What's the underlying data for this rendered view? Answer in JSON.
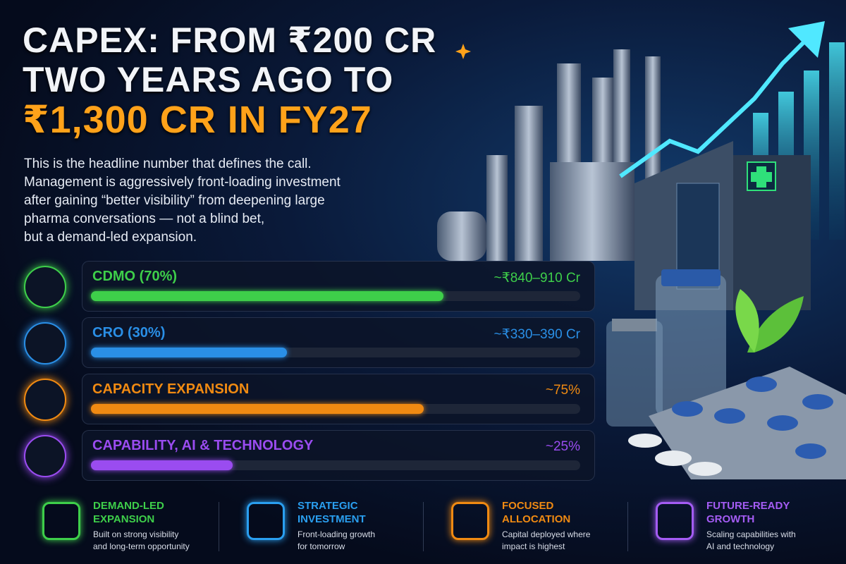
{
  "header": {
    "title_lines": [
      "CAPEX: FROM ₹200 CR",
      "TWO YEARS AGO TO",
      "₹1,300 CR IN FY27"
    ],
    "intro_lines": [
      "This is the headline number that defines the call.",
      "Management is aggressively front-loading investment",
      "after gaining “better visibility” from deepening large",
      "pharma conversations — not a blind bet,",
      "but a demand-led expansion."
    ]
  },
  "allocation": [
    {
      "label": "CDMO (70%)",
      "amount": "~₹840–910 Cr",
      "bar_fill": 72,
      "color": "#3ecf4a"
    },
    {
      "label": "CRO (30%)",
      "amount": "~₹330–390 Cr",
      "bar_fill": 40,
      "color": "#2a8fe6"
    },
    {
      "label": "CAPACITY EXPANSION",
      "amount": "~75%",
      "bar_fill": 68,
      "color": "#f08a12"
    },
    {
      "label": "CAPABILITY, AI & TECHNOLOGY",
      "amount": "~25%",
      "bar_fill": 29,
      "color": "#9a4cf0"
    }
  ],
  "features": [
    {
      "title_lines": [
        "DEMAND-LED",
        "EXPANSION"
      ],
      "text_lines": [
        "Built on strong visibility",
        "and long-term opportunity"
      ],
      "color": "#3ecf4a"
    },
    {
      "title_lines": [
        "STRATEGIC",
        "INVESTMENT"
      ],
      "text_lines": [
        "Front-loading growth",
        "for tomorrow"
      ],
      "color": "#2a9ff0"
    },
    {
      "title_lines": [
        "FOCUSED",
        "ALLOCATION"
      ],
      "text_lines": [
        "Capital deployed where",
        "impact is highest"
      ],
      "color": "#f08a12"
    },
    {
      "title_lines": [
        "FUTURE-READY",
        "GROWTH"
      ],
      "text_lines": [
        "Scaling capabilities with",
        "AI and technology"
      ],
      "color": "#a45cf4"
    }
  ]
}
